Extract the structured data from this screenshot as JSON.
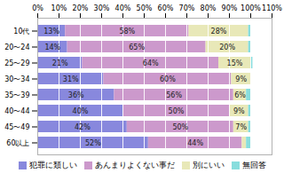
{
  "chart_data": {
    "type": "bar",
    "orientation": "horizontal",
    "stacked": true,
    "categories": [
      "10代",
      "20〜24",
      "25〜29",
      "30〜34",
      "35〜39",
      "40〜44",
      "45〜49",
      "60以上"
    ],
    "series": [
      {
        "name": "犯罪に類しい",
        "color": "#8888dd",
        "values": [
          13,
          14,
          21,
          31,
          36,
          40,
          42,
          52
        ],
        "value_labels": [
          "13%",
          "14%",
          "21%",
          "31%",
          "36%",
          "40%",
          "42%",
          "52%"
        ]
      },
      {
        "name": "あんまりよくない事だ",
        "color": "#cc99cc",
        "values": [
          58,
          65,
          64,
          60,
          56,
          50,
          50,
          44
        ],
        "value_labels": [
          "58%",
          "65%",
          "64%",
          "60%",
          "56%",
          "50%",
          "50%",
          "44%"
        ]
      },
      {
        "name": "別にいい",
        "color": "#e8e8b8",
        "values": [
          28,
          20,
          15,
          9,
          6,
          9,
          7,
          2
        ],
        "value_labels": [
          "28%",
          "20%",
          "15%",
          "9%",
          "6%",
          "9%",
          "7%",
          null
        ]
      },
      {
        "name": "無回答",
        "color": "#88dddd",
        "values": [
          1,
          1,
          1,
          0,
          2,
          1,
          1,
          2
        ],
        "value_labels": [
          null,
          null,
          null,
          null,
          null,
          null,
          null,
          null
        ]
      }
    ],
    "xlim": [
      0,
      110
    ],
    "xticks": [
      {
        "value": 0,
        "label": "0%"
      },
      {
        "value": 10,
        "label": "10%"
      },
      {
        "value": 20,
        "label": "20%"
      },
      {
        "value": 30,
        "label": "30%"
      },
      {
        "value": 40,
        "label": "40%"
      },
      {
        "value": 50,
        "label": "50%"
      },
      {
        "value": 60,
        "label": "60%"
      },
      {
        "value": 70,
        "label": "70%"
      },
      {
        "value": 80,
        "label": "80%"
      },
      {
        "value": 90,
        "label": "90%"
      },
      {
        "value": 100,
        "label": "100%"
      },
      {
        "value": 110,
        "label": "110%"
      }
    ],
    "grid": true,
    "data_labels": true,
    "legend": "bottom"
  }
}
